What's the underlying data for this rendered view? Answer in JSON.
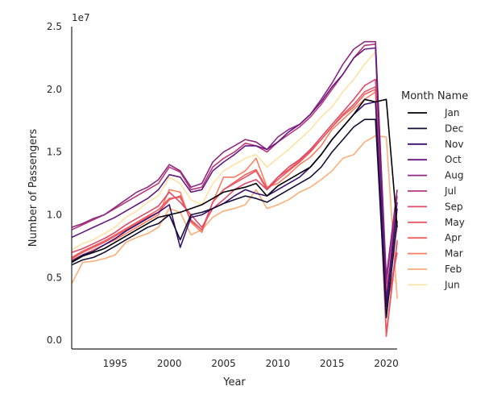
{
  "chart_data": {
    "type": "line",
    "title": "",
    "xlabel": "Year",
    "ylabel": "Number of Passengers",
    "offset_text": "1e7",
    "xlim": [
      1991,
      2021
    ],
    "ylim": [
      -0.07,
      2.5
    ],
    "x_ticks": [
      1995,
      2000,
      2005,
      2010,
      2015,
      2020
    ],
    "y_ticks": [
      0.0,
      0.5,
      1.0,
      1.5,
      2.0,
      2.5
    ],
    "y_tick_labels": [
      "0.0",
      "0.5",
      "1.0",
      "1.5",
      "2.0",
      "2.5"
    ],
    "grid": false,
    "legend": {
      "title": "Month Name",
      "placement": "right"
    },
    "x": [
      1991,
      1992,
      1993,
      1994,
      1995,
      1996,
      1997,
      1998,
      1999,
      2000,
      2001,
      2002,
      2003,
      2004,
      2005,
      2006,
      2007,
      2008,
      2009,
      2010,
      2011,
      2012,
      2013,
      2014,
      2015,
      2016,
      2017,
      2018,
      2019,
      2020,
      2021
    ],
    "series": [
      {
        "name": "Jan",
        "color": "#000004",
        "values": [
          0.62,
          0.67,
          0.7,
          0.73,
          0.78,
          0.83,
          0.88,
          0.93,
          0.98,
          1.0,
          1.02,
          1.05,
          1.08,
          1.13,
          1.18,
          1.2,
          1.22,
          1.25,
          1.15,
          1.23,
          1.28,
          1.33,
          1.38,
          1.48,
          1.6,
          1.7,
          1.8,
          1.92,
          1.9,
          1.92,
          0.9
        ]
      },
      {
        "name": "Dec",
        "color": "#140e36",
        "values": [
          0.6,
          0.64,
          0.66,
          0.7,
          0.75,
          0.8,
          0.85,
          0.9,
          0.93,
          1.0,
          0.8,
          1.0,
          1.02,
          1.05,
          1.09,
          1.12,
          1.15,
          1.13,
          1.1,
          1.15,
          1.2,
          1.25,
          1.3,
          1.38,
          1.5,
          1.6,
          1.7,
          1.76,
          1.76,
          0.18,
          0.95
        ]
      },
      {
        "name": "Nov",
        "color": "#3b0f70",
        "values": [
          0.63,
          0.68,
          0.71,
          0.76,
          0.81,
          0.87,
          0.92,
          0.97,
          1.02,
          1.08,
          0.74,
          0.98,
          1.0,
          1.05,
          1.09,
          1.15,
          1.2,
          1.17,
          1.15,
          1.2,
          1.25,
          1.3,
          1.38,
          1.48,
          1.6,
          1.7,
          1.8,
          1.88,
          1.9,
          0.27,
          1.05
        ]
      },
      {
        "name": "Oct",
        "color": "#641a80",
        "values": [
          0.82,
          0.86,
          0.9,
          0.94,
          0.98,
          1.03,
          1.08,
          1.13,
          1.2,
          1.32,
          1.3,
          1.18,
          1.2,
          1.35,
          1.42,
          1.48,
          1.55,
          1.55,
          1.52,
          1.58,
          1.66,
          1.72,
          1.8,
          1.9,
          2.02,
          2.12,
          2.25,
          2.32,
          2.33,
          0.32,
          1.1
        ]
      },
      {
        "name": "Aug",
        "color": "#8c2981",
        "values": [
          0.9,
          0.93,
          0.97,
          1.0,
          1.06,
          1.12,
          1.18,
          1.22,
          1.28,
          1.4,
          1.35,
          1.22,
          1.25,
          1.42,
          1.5,
          1.55,
          1.6,
          1.58,
          1.52,
          1.62,
          1.68,
          1.72,
          1.8,
          1.92,
          2.05,
          2.2,
          2.32,
          2.38,
          2.38,
          0.5,
          1.2
        ]
      },
      {
        "name": "Jul",
        "color": "#b73779",
        "values": [
          0.88,
          0.92,
          0.96,
          1.0,
          1.05,
          1.1,
          1.15,
          1.2,
          1.25,
          1.38,
          1.34,
          1.2,
          1.22,
          1.38,
          1.45,
          1.5,
          1.57,
          1.55,
          1.5,
          1.58,
          1.64,
          1.7,
          1.78,
          1.88,
          2.0,
          2.12,
          2.25,
          2.35,
          2.36,
          0.45,
          1.15
        ]
      },
      {
        "name": "Sep",
        "color": "#de4968",
        "values": [
          0.7,
          0.73,
          0.77,
          0.81,
          0.86,
          0.92,
          0.97,
          1.02,
          1.07,
          1.18,
          1.1,
          1.0,
          0.9,
          1.05,
          1.12,
          1.2,
          1.25,
          1.28,
          1.2,
          1.3,
          1.38,
          1.44,
          1.52,
          1.62,
          1.72,
          1.82,
          1.92,
          2.03,
          2.08,
          0.25,
          0.7
        ]
      },
      {
        "name": "May",
        "color": "#e55964",
        "values": [
          0.65,
          0.7,
          0.74,
          0.78,
          0.83,
          0.88,
          0.93,
          0.98,
          1.02,
          1.12,
          1.15,
          0.95,
          0.88,
          1.1,
          1.2,
          1.25,
          1.3,
          1.35,
          1.2,
          1.28,
          1.35,
          1.42,
          1.5,
          1.6,
          1.7,
          1.8,
          1.88,
          1.98,
          2.02,
          0.05,
          0.8
        ]
      },
      {
        "name": "Apr",
        "color": "#f1605d",
        "values": [
          0.66,
          0.71,
          0.75,
          0.79,
          0.84,
          0.89,
          0.94,
          0.99,
          1.04,
          1.13,
          1.14,
          0.96,
          0.88,
          1.1,
          1.2,
          1.26,
          1.32,
          1.36,
          1.21,
          1.3,
          1.36,
          1.43,
          1.51,
          1.6,
          1.7,
          1.79,
          1.86,
          1.96,
          2.0,
          0.03,
          0.78
        ]
      },
      {
        "name": "Mar",
        "color": "#fa7e5e",
        "values": [
          0.64,
          0.68,
          0.72,
          0.76,
          0.8,
          0.85,
          0.9,
          0.95,
          1.0,
          1.2,
          1.18,
          0.94,
          0.86,
          1.1,
          1.3,
          1.3,
          1.35,
          1.45,
          1.22,
          1.25,
          1.32,
          1.4,
          1.46,
          1.55,
          1.68,
          1.76,
          1.84,
          1.92,
          1.98,
          0.4,
          0.9
        ]
      },
      {
        "name": "Feb",
        "color": "#fdae78",
        "values": [
          0.45,
          0.62,
          0.63,
          0.65,
          0.68,
          0.78,
          0.82,
          0.85,
          0.9,
          1.05,
          1.02,
          0.84,
          0.88,
          0.98,
          1.03,
          1.05,
          1.08,
          1.2,
          1.05,
          1.08,
          1.12,
          1.18,
          1.22,
          1.28,
          1.35,
          1.45,
          1.48,
          1.58,
          1.63,
          1.62,
          0.33
        ]
      },
      {
        "name": "Jun",
        "color": "#fde2a5",
        "values": [
          0.72,
          0.77,
          0.8,
          0.85,
          0.9,
          0.98,
          1.03,
          1.1,
          1.15,
          1.3,
          1.25,
          1.12,
          1.08,
          1.25,
          1.35,
          1.4,
          1.45,
          1.48,
          1.38,
          1.45,
          1.52,
          1.6,
          1.68,
          1.78,
          1.86,
          1.98,
          2.08,
          2.2,
          2.3,
          0.55,
          0.45
        ]
      }
    ]
  }
}
